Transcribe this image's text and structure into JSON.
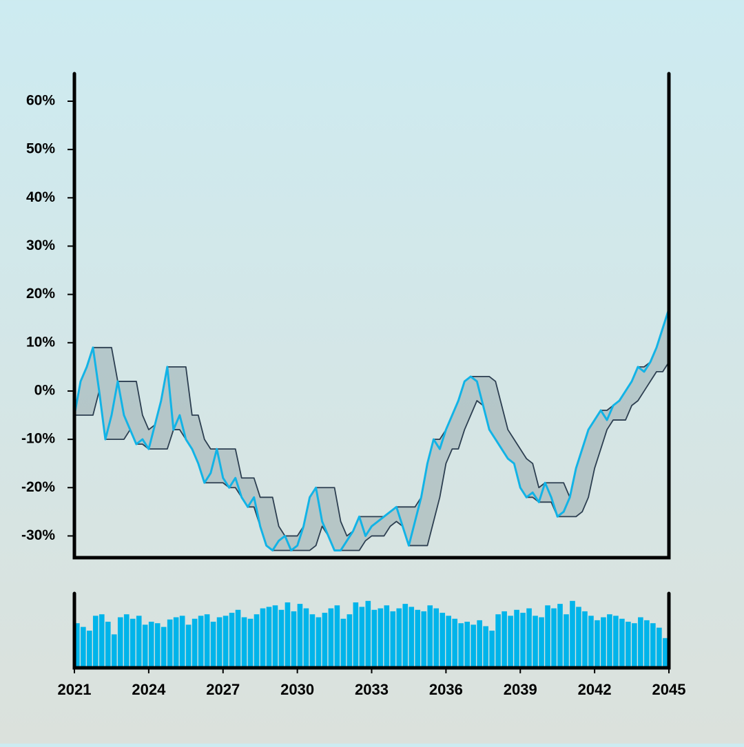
{
  "chart_data": [
    {
      "type": "line",
      "x": [
        2021,
        2021.25,
        2021.5,
        2021.75,
        2022,
        2022.25,
        2022.5,
        2022.75,
        2023,
        2023.25,
        2023.5,
        2023.75,
        2024,
        2024.25,
        2024.5,
        2024.75,
        2025,
        2025.25,
        2025.5,
        2025.75,
        2026,
        2026.25,
        2026.5,
        2026.75,
        2027,
        2027.25,
        2027.5,
        2027.75,
        2028,
        2028.25,
        2028.5,
        2028.75,
        2029,
        2029.25,
        2029.5,
        2029.75,
        2030,
        2030.25,
        2030.5,
        2030.75,
        2031,
        2031.25,
        2031.5,
        2031.75,
        2032,
        2032.25,
        2032.5,
        2032.75,
        2033,
        2033.25,
        2033.5,
        2033.75,
        2034,
        2034.25,
        2034.5,
        2034.75,
        2035,
        2035.25,
        2035.5,
        2035.75,
        2036,
        2036.25,
        2036.5,
        2036.75,
        2037,
        2037.25,
        2037.5,
        2037.75,
        2038,
        2038.25,
        2038.5,
        2038.75,
        2039,
        2039.25,
        2039.5,
        2039.75,
        2040,
        2040.25,
        2040.5,
        2040.75,
        2041,
        2041.25,
        2041.5,
        2041.75,
        2042,
        2042.25,
        2042.5,
        2042.75,
        2043,
        2043.25,
        2043.5,
        2043.75,
        2044,
        2044.25,
        2044.5,
        2044.75,
        2045
      ],
      "series": [
        {
          "color": "#12b3e6",
          "values": [
            -5,
            2,
            5,
            9,
            0,
            -10,
            -5,
            2,
            -5,
            -8,
            -11,
            -10,
            -12,
            -7,
            -2,
            5,
            -8,
            -5,
            -10,
            -12,
            -15,
            -19,
            -17,
            -12,
            -18,
            -20,
            -18,
            -22,
            -24,
            -22,
            -28,
            -32,
            -33,
            -31,
            -30,
            -33,
            -32,
            -28,
            -22,
            -20,
            -27,
            -30,
            -33,
            -33,
            -31,
            -29,
            -26,
            -30,
            -28,
            -27,
            -26,
            -25,
            -24,
            -28,
            -32,
            -27,
            -22,
            -15,
            -10,
            -12,
            -8,
            -5,
            -2,
            2,
            3,
            2,
            -3,
            -8,
            -10,
            -12,
            -14,
            -15,
            -20,
            -22,
            -21,
            -23,
            -19,
            -22,
            -26,
            -25,
            -22,
            -16,
            -12,
            -8,
            -6,
            -4,
            -6,
            -3,
            -2,
            0,
            2,
            5,
            4,
            6,
            9,
            13,
            17
          ]
        },
        {
          "color": "#2c3e50",
          "values": [
            -5,
            2,
            5,
            9,
            9,
            9,
            9,
            2,
            2,
            2,
            2,
            -5,
            -8,
            -7,
            -2,
            5,
            5,
            5,
            5,
            -5,
            -5,
            -10,
            -12,
            -12,
            -12,
            -12,
            -12,
            -18,
            -18,
            -18,
            -22,
            -22,
            -22,
            -28,
            -30,
            -30,
            -30,
            -28,
            -22,
            -20,
            -20,
            -20,
            -20,
            -27,
            -30,
            -29,
            -26,
            -26,
            -26,
            -26,
            -26,
            -25,
            -24,
            -24,
            -24,
            -24,
            -22,
            -15,
            -10,
            -10,
            -8,
            -5,
            -2,
            2,
            3,
            3,
            3,
            3,
            2,
            -3,
            -8,
            -10,
            -12,
            -14,
            -15,
            -20,
            -19,
            -19,
            -19,
            -19,
            -22,
            -16,
            -12,
            -8,
            -6,
            -4,
            -4,
            -3,
            -2,
            0,
            2,
            5,
            5,
            6,
            9,
            13,
            17
          ]
        },
        {
          "color": "#2c3e50",
          "values": [
            -5,
            -5,
            -5,
            -5,
            0,
            -10,
            -10,
            -10,
            -10,
            -8,
            -11,
            -11,
            -12,
            -12,
            -12,
            -12,
            -8,
            -8,
            -10,
            -12,
            -15,
            -19,
            -19,
            -19,
            -19,
            -20,
            -20,
            -22,
            -24,
            -24,
            -28,
            -32,
            -33,
            -33,
            -33,
            -33,
            -33,
            -33,
            -33,
            -32,
            -28,
            -30,
            -33,
            -33,
            -33,
            -33,
            -33,
            -31,
            -30,
            -30,
            -30,
            -28,
            -27,
            -28,
            -32,
            -32,
            -32,
            -32,
            -27,
            -22,
            -15,
            -12,
            -12,
            -8,
            -5,
            -2,
            -3,
            -8,
            -10,
            -12,
            -14,
            -15,
            -20,
            -22,
            -22,
            -23,
            -23,
            -23,
            -26,
            -26,
            -26,
            -26,
            -25,
            -22,
            -16,
            -12,
            -8,
            -6,
            -6,
            -6,
            -3,
            -2,
            0,
            2,
            4,
            4,
            6
          ]
        }
      ],
      "band_fill": "rgba(70,90,100,0.22)",
      "xlim": [
        2021,
        2045
      ],
      "ylim": [
        -34.5,
        65.7
      ],
      "yticks": [
        {
          "value": -30,
          "label": "-30%"
        },
        {
          "value": -20,
          "label": "-20%"
        },
        {
          "value": -10,
          "label": "-10%"
        },
        {
          "value": 0,
          "label": "0%"
        },
        {
          "value": 10,
          "label": "10%"
        },
        {
          "value": 20,
          "label": "20%"
        },
        {
          "value": 30,
          "label": "30%"
        },
        {
          "value": 40,
          "label": "40%"
        },
        {
          "value": 50,
          "label": "50%"
        },
        {
          "value": 60,
          "label": "60%"
        }
      ]
    },
    {
      "type": "bar",
      "x": [
        2021,
        2021.25,
        2021.5,
        2021.75,
        2022,
        2022.25,
        2022.5,
        2022.75,
        2023,
        2023.25,
        2023.5,
        2023.75,
        2024,
        2024.25,
        2024.5,
        2024.75,
        2025,
        2025.25,
        2025.5,
        2025.75,
        2026,
        2026.25,
        2026.5,
        2026.75,
        2027,
        2027.25,
        2027.5,
        2027.75,
        2028,
        2028.25,
        2028.5,
        2028.75,
        2029,
        2029.25,
        2029.5,
        2029.75,
        2030,
        2030.25,
        2030.5,
        2030.75,
        2031,
        2031.25,
        2031.5,
        2031.75,
        2032,
        2032.25,
        2032.5,
        2032.75,
        2033,
        2033.25,
        2033.5,
        2033.75,
        2034,
        2034.25,
        2034.5,
        2034.75,
        2035,
        2035.25,
        2035.5,
        2035.75,
        2036,
        2036.25,
        2036.5,
        2036.75,
        2037,
        2037.25,
        2037.5,
        2037.75,
        2038,
        2038.25,
        2038.5,
        2038.75,
        2039,
        2039.25,
        2039.5,
        2039.75,
        2040,
        2040.25,
        2040.5,
        2040.75,
        2041,
        2041.25,
        2041.5,
        2041.75,
        2042,
        2042.25,
        2042.5,
        2042.75,
        2043,
        2043.25,
        2043.5,
        2043.75,
        2044,
        2044.25,
        2044.5,
        2044.75
      ],
      "values": [
        60,
        55,
        50,
        70,
        72,
        62,
        45,
        68,
        72,
        66,
        70,
        58,
        62,
        60,
        55,
        65,
        68,
        70,
        58,
        66,
        70,
        72,
        62,
        68,
        70,
        74,
        78,
        68,
        66,
        72,
        80,
        82,
        84,
        78,
        88,
        76,
        86,
        80,
        72,
        68,
        74,
        80,
        84,
        66,
        72,
        88,
        82,
        90,
        78,
        80,
        84,
        76,
        80,
        86,
        82,
        78,
        76,
        84,
        80,
        74,
        70,
        66,
        60,
        62,
        58,
        64,
        56,
        50,
        72,
        76,
        70,
        78,
        74,
        80,
        70,
        68,
        84,
        80,
        86,
        72,
        90,
        82,
        76,
        70,
        64,
        68,
        72,
        70,
        66,
        62,
        60,
        68,
        64,
        60,
        54,
        40
      ],
      "color": "#00b4ea",
      "xlim": [
        2021,
        2045
      ],
      "ylim": [
        0,
        100
      ],
      "xticks": [
        2021,
        2024,
        2027,
        2030,
        2033,
        2036,
        2039,
        2042,
        2045
      ]
    }
  ]
}
